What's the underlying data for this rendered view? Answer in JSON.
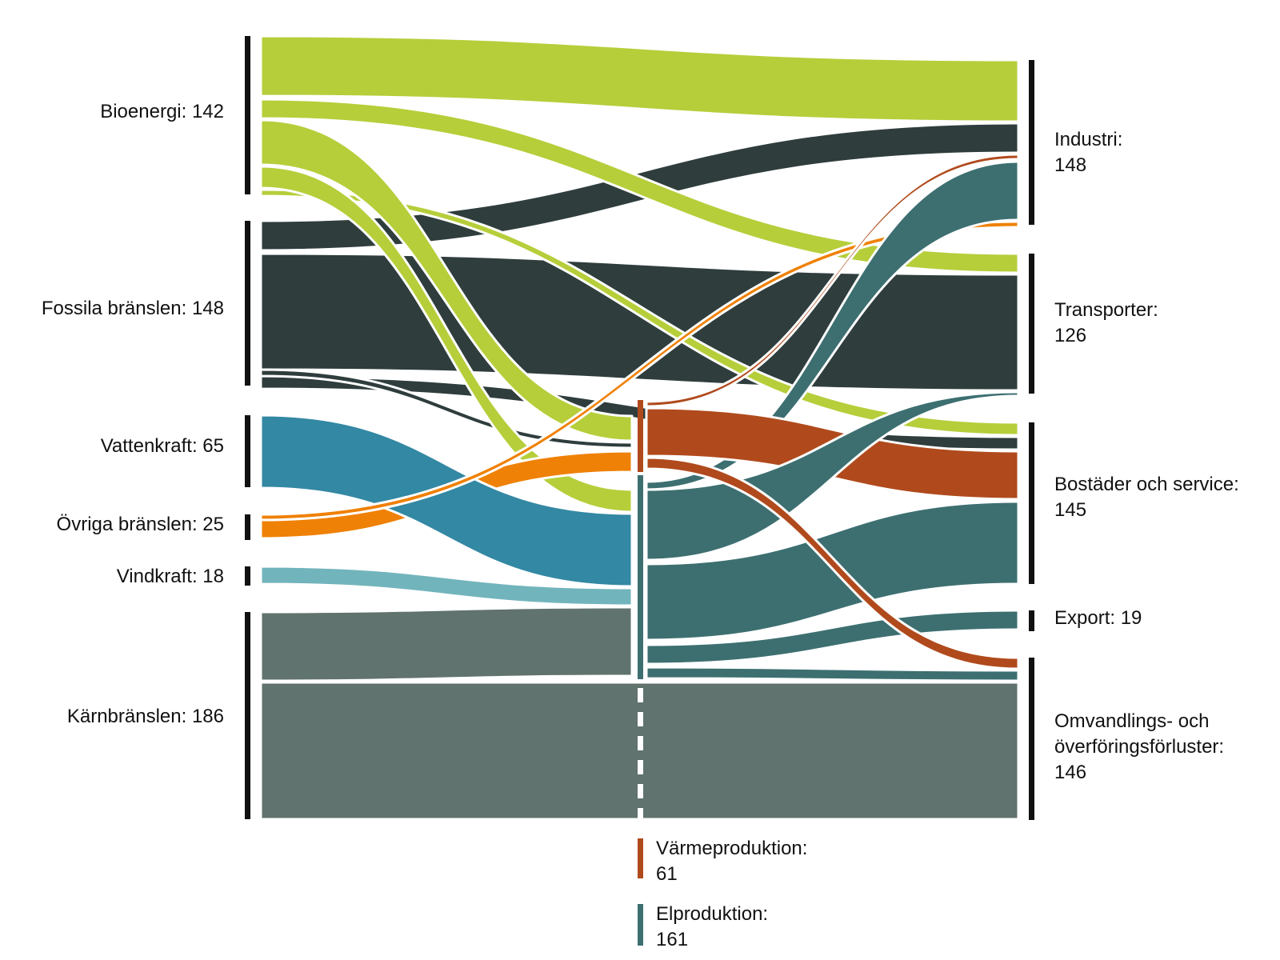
{
  "sources": [
    {
      "id": "bio",
      "label": "Bioenergi: 142",
      "value": 142,
      "color": "#b6ce3a"
    },
    {
      "id": "fos",
      "label": "Fossila bränslen: 148",
      "value": 148,
      "color": "#2f3d3d"
    },
    {
      "id": "vat",
      "label": "Vattenkraft: 65",
      "value": 65,
      "color": "#3388a3"
    },
    {
      "id": "ovr",
      "label": "Övriga bränslen: 25",
      "value": 25,
      "color": "#ef8106"
    },
    {
      "id": "vin",
      "label": "Vindkraft: 18",
      "value": 18,
      "color": "#72b4bc"
    },
    {
      "id": "kar",
      "label": "Kärnbränslen: 186",
      "value": 186,
      "color": "#60736e"
    }
  ],
  "targets": [
    {
      "id": "ind",
      "label": "Industri:",
      "value_label": "148",
      "value": 148
    },
    {
      "id": "tra",
      "label": "Transporter:",
      "value_label": "126",
      "value": 126
    },
    {
      "id": "bos",
      "label": "Bostäder och service:",
      "value_label": "145",
      "value": 145
    },
    {
      "id": "exp",
      "label": "Export: 19",
      "value": 19
    },
    {
      "id": "omv",
      "label": "Omvandlings- och",
      "label2": "överföringsförluster:",
      "value_label": "146",
      "value": 146
    }
  ],
  "intermediates": [
    {
      "id": "var",
      "label": "Värmeproduktion:",
      "value_label": "61",
      "value": 61,
      "color": "#b04a1c"
    },
    {
      "id": "elp",
      "label": "Elproduktion:",
      "value_label": "161",
      "value": 161,
      "color": "#3d6f71"
    }
  ],
  "colors": {
    "bioenergi": "#b6ce3a",
    "fossila": "#2f3d3d",
    "vattenkraft": "#3388a3",
    "ovriga": "#ef8106",
    "vindkraft": "#72b4bc",
    "karnbransle": "#60736e",
    "varme": "#b04a1c",
    "el": "#3d6f71",
    "node_bar": "#111111"
  }
}
